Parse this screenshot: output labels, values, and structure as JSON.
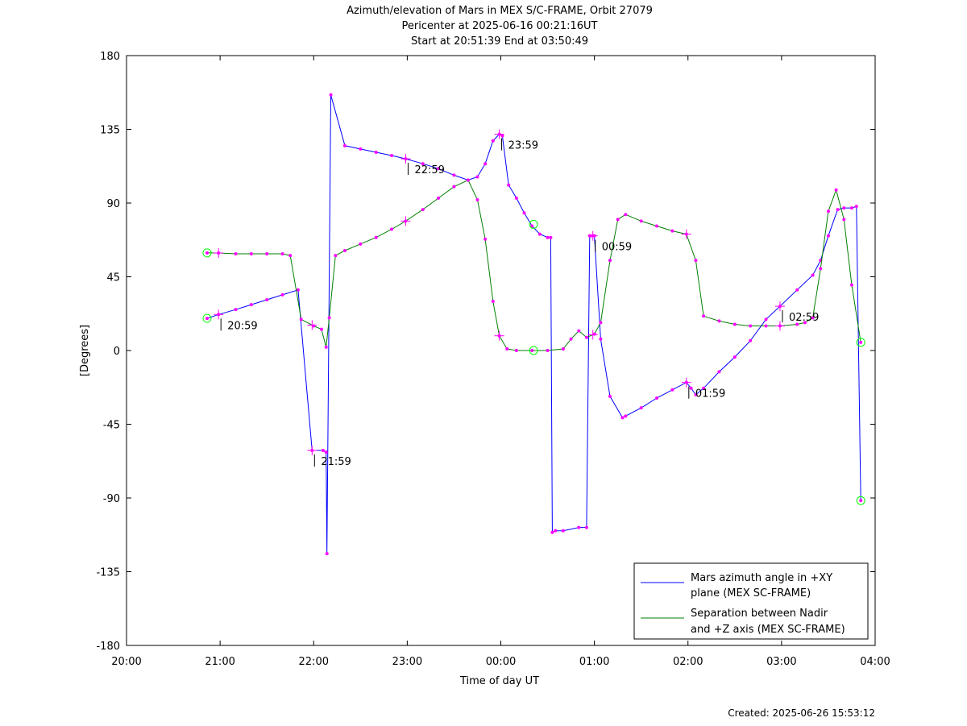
{
  "chart_data": {
    "type": "line",
    "title": "Azimuth/elevation of Mars in MEX S/C-FRAME,  Orbit 27079",
    "subtitle1": "Pericenter at 2025-06-16 00:21:16UT",
    "subtitle2": "Start at 20:51:39 End at 03:50:49",
    "xlabel": "Time of day UT",
    "ylabel": "[Degrees]",
    "xlim": [
      "20:00",
      "04:00"
    ],
    "ylim": [
      -180,
      180
    ],
    "x_ticks": [
      "20:00",
      "21:00",
      "22:00",
      "23:00",
      "00:00",
      "01:00",
      "02:00",
      "03:00",
      "04:00"
    ],
    "y_ticks": [
      180,
      135,
      90,
      45,
      0,
      -45,
      -90,
      -135,
      -180
    ],
    "grid": false,
    "legend_position": "bottom-right",
    "footer": "Created: 2025-06-26 15:53:12",
    "series": [
      {
        "name": "Mars azimuth angle in +XY plane (MEX SC-FRAME)",
        "legend_line1": "Mars azimuth angle in +XY",
        "legend_line2": "plane (MEX SC-FRAME)",
        "color": "#0000ff",
        "x": [
          "20:51:39",
          "20:59",
          "21:10",
          "21:20",
          "21:30",
          "21:40",
          "21:50",
          "21:59",
          "22:06",
          "22:08",
          "22:08:30",
          "22:11",
          "22:20",
          "22:30",
          "22:40",
          "22:50",
          "22:59",
          "23:10",
          "23:20",
          "23:30",
          "23:39",
          "23:45",
          "23:50",
          "23:55",
          "23:59",
          "00:01",
          "00:05",
          "00:10",
          "00:15",
          "00:20",
          "00:25",
          "00:30",
          "00:32",
          "00:33",
          "00:35",
          "00:40",
          "00:50",
          "00:55",
          "00:57",
          "00:58",
          "01:00",
          "01:04",
          "01:10",
          "01:18",
          "01:20",
          "01:30",
          "01:40",
          "01:50",
          "01:59",
          "02:02",
          "02:05",
          "02:10",
          "02:20",
          "02:30",
          "02:40",
          "02:50",
          "02:59",
          "03:10",
          "03:20",
          "03:25",
          "03:30",
          "03:36",
          "03:40",
          "03:45",
          "03:48",
          "03:50:49"
        ],
        "y": [
          19.6,
          22,
          25,
          28,
          31,
          34,
          37,
          -61,
          -61,
          -62,
          -124,
          156,
          125,
          123,
          121,
          119,
          117,
          114,
          111,
          107,
          104,
          106,
          114,
          128,
          132,
          131,
          101,
          93,
          84,
          76,
          71,
          69,
          69,
          -111,
          -110,
          -110,
          -108,
          -108,
          70,
          70,
          70,
          7,
          -28,
          -41,
          -40,
          -35,
          -29,
          -24,
          -19.5,
          -23,
          -27,
          -23,
          -13,
          -4,
          6,
          19,
          27,
          37,
          46,
          55,
          70,
          86,
          87,
          87,
          88,
          -91.6
        ]
      },
      {
        "name": "Separation between Nadir and +Z axis (MEX SC-FRAME)",
        "legend_line1": "Separation between Nadir",
        "legend_line2": "and +Z axis (MEX SC-FRAME)",
        "color": "#008000",
        "x": [
          "20:51:39",
          "20:59",
          "21:10",
          "21:20",
          "21:30",
          "21:40",
          "21:45",
          "21:52",
          "22:00",
          "22:05",
          "22:08",
          "22:10",
          "22:14",
          "22:20",
          "22:30",
          "22:40",
          "22:50",
          "22:59",
          "23:10",
          "23:20",
          "23:30",
          "23:39",
          "23:45",
          "23:50",
          "23:55",
          "23:59",
          "00:04",
          "00:10",
          "00:20",
          "00:30",
          "00:40",
          "00:45",
          "00:50",
          "00:55",
          "01:00",
          "01:04",
          "01:10",
          "01:15",
          "01:20",
          "01:30",
          "01:40",
          "01:50",
          "01:59",
          "02:05",
          "02:10",
          "02:20",
          "02:30",
          "02:40",
          "02:50",
          "02:59",
          "03:10",
          "03:15",
          "03:20",
          "03:25",
          "03:30",
          "03:35",
          "03:40",
          "03:45",
          "03:50:49"
        ],
        "y": [
          59.6,
          59.5,
          59,
          59,
          59,
          59,
          58,
          19,
          15,
          13,
          2,
          20,
          58,
          61,
          65,
          69,
          74,
          79,
          86,
          93,
          100,
          104,
          92,
          68,
          30,
          9,
          1,
          0,
          0,
          0,
          1,
          7,
          12,
          8,
          10,
          17,
          55,
          80,
          83,
          79,
          76,
          73,
          71,
          55,
          21,
          18,
          16,
          15,
          15,
          15,
          16,
          17,
          20,
          50,
          85,
          98,
          80,
          40,
          5
        ]
      }
    ],
    "time_labels": [
      {
        "x": "20:59",
        "label": "20:59"
      },
      {
        "x": "21:59",
        "label": "21:59"
      },
      {
        "x": "22:59",
        "label": "22:59"
      },
      {
        "x": "23:59",
        "label": "23:59"
      },
      {
        "x": "00:59",
        "label": "00:59"
      },
      {
        "x": "01:59",
        "label": "01:59"
      },
      {
        "x": "02:59",
        "label": "02:59"
      }
    ]
  },
  "marker_colors": {
    "dots": "#ff00ff",
    "endpoint_circles": "#00ff00"
  }
}
